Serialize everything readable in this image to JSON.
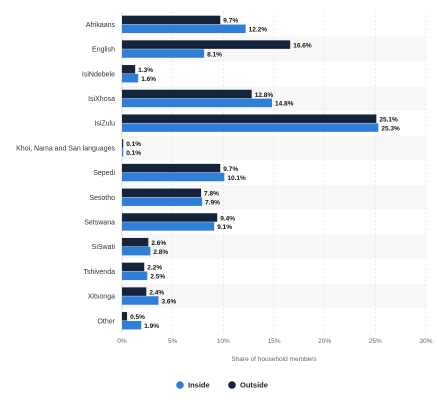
{
  "chart_data": {
    "type": "bar",
    "orientation": "horizontal",
    "categories": [
      "Afrikaans",
      "English",
      "IsiNdebele",
      "IsiXhosa",
      "IsiZulu",
      "Khoi, Nama and San languages",
      "Sepedi",
      "Sesotho",
      "Setswana",
      "SiSwati",
      "Tshivenda",
      "Xitsonga",
      "Other"
    ],
    "series": [
      {
        "name": "Outside",
        "color": "#14243a",
        "values": [
          9.7,
          16.6,
          1.3,
          12.8,
          25.1,
          0.1,
          9.7,
          7.8,
          9.4,
          2.6,
          2.2,
          2.4,
          0.5
        ]
      },
      {
        "name": "Inside",
        "color": "#2f7ed8",
        "values": [
          12.2,
          8.1,
          1.6,
          14.8,
          25.3,
          0.1,
          10.1,
          7.9,
          9.1,
          2.8,
          2.5,
          3.6,
          1.9
        ]
      }
    ],
    "value_suffix": "%",
    "xlabel": "Share of household members",
    "xlim": [
      0,
      30
    ],
    "xticks": [
      "0%",
      "5%",
      "10%",
      "15%",
      "20%",
      "25%",
      "30%"
    ],
    "grid": true,
    "legend": {
      "position": "bottom-center",
      "order": [
        "Inside",
        "Outside"
      ]
    }
  }
}
